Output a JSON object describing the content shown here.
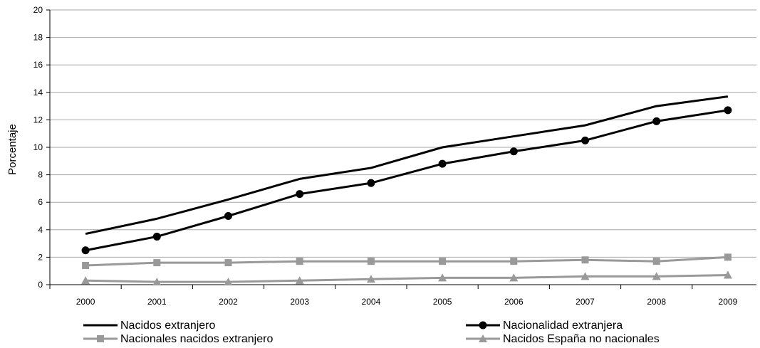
{
  "chart_data": {
    "type": "line",
    "title": "",
    "xlabel": "",
    "ylabel": "Porcentaje",
    "categories": [
      "2000",
      "2001",
      "2002",
      "2003",
      "2004",
      "2005",
      "2006",
      "2007",
      "2008",
      "2009"
    ],
    "ylim": [
      0,
      20
    ],
    "yticks": [
      "0",
      "2",
      "4",
      "6",
      "8",
      "10",
      "12",
      "14",
      "16",
      "18",
      "20"
    ],
    "grid": "horizontal",
    "legend_position": "bottom",
    "series": [
      {
        "name": "Nacidos extranjero",
        "color": "#000000",
        "marker": "none",
        "values": [
          3.7,
          4.8,
          6.2,
          7.7,
          8.5,
          10.0,
          10.8,
          11.6,
          13.0,
          13.7
        ]
      },
      {
        "name": "Nacionalidad extranjera",
        "color": "#000000",
        "marker": "circle",
        "values": [
          2.5,
          3.5,
          5.0,
          6.6,
          7.4,
          8.8,
          9.7,
          10.5,
          11.9,
          12.7
        ]
      },
      {
        "name": "Nacionales nacidos extranjero",
        "color": "#999999",
        "marker": "square",
        "values": [
          1.4,
          1.6,
          1.6,
          1.7,
          1.7,
          1.7,
          1.7,
          1.8,
          1.7,
          2.0
        ]
      },
      {
        "name": "Nacidos España no nacionales",
        "color": "#999999",
        "marker": "triangle",
        "values": [
          0.3,
          0.2,
          0.2,
          0.3,
          0.4,
          0.5,
          0.5,
          0.6,
          0.6,
          0.7
        ]
      }
    ]
  }
}
